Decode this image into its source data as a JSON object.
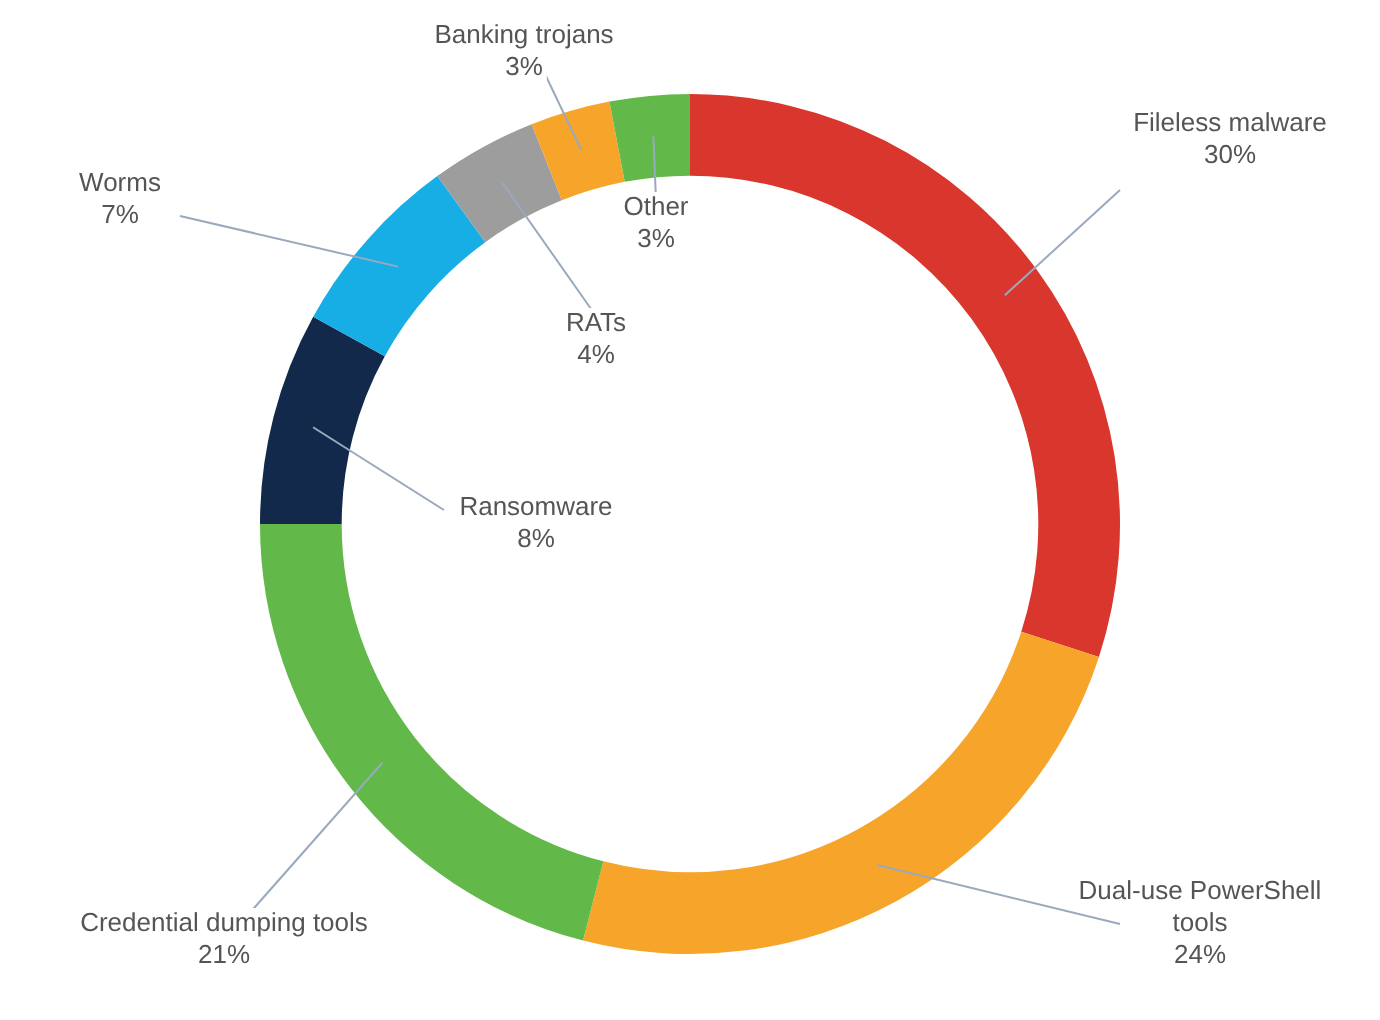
{
  "chart_data": {
    "type": "donut",
    "categories": [
      "Fileless malware",
      "Dual-use PowerShell tools",
      "Credential dumping tools",
      "Ransomware",
      "Worms",
      "RATs",
      "Banking trojans",
      "Other"
    ],
    "values": [
      30,
      24,
      21,
      8,
      7,
      4,
      3,
      3
    ],
    "value_labels": [
      "30%",
      "24%",
      "21%",
      "8%",
      "7%",
      "4%",
      "3%",
      "3%"
    ],
    "colors": [
      "#d9372d",
      "#f6a52a",
      "#62b94a",
      "#13294b",
      "#17aee6",
      "#9d9d9d",
      "#f6a52a",
      "#62b94a"
    ],
    "legend": false
  }
}
